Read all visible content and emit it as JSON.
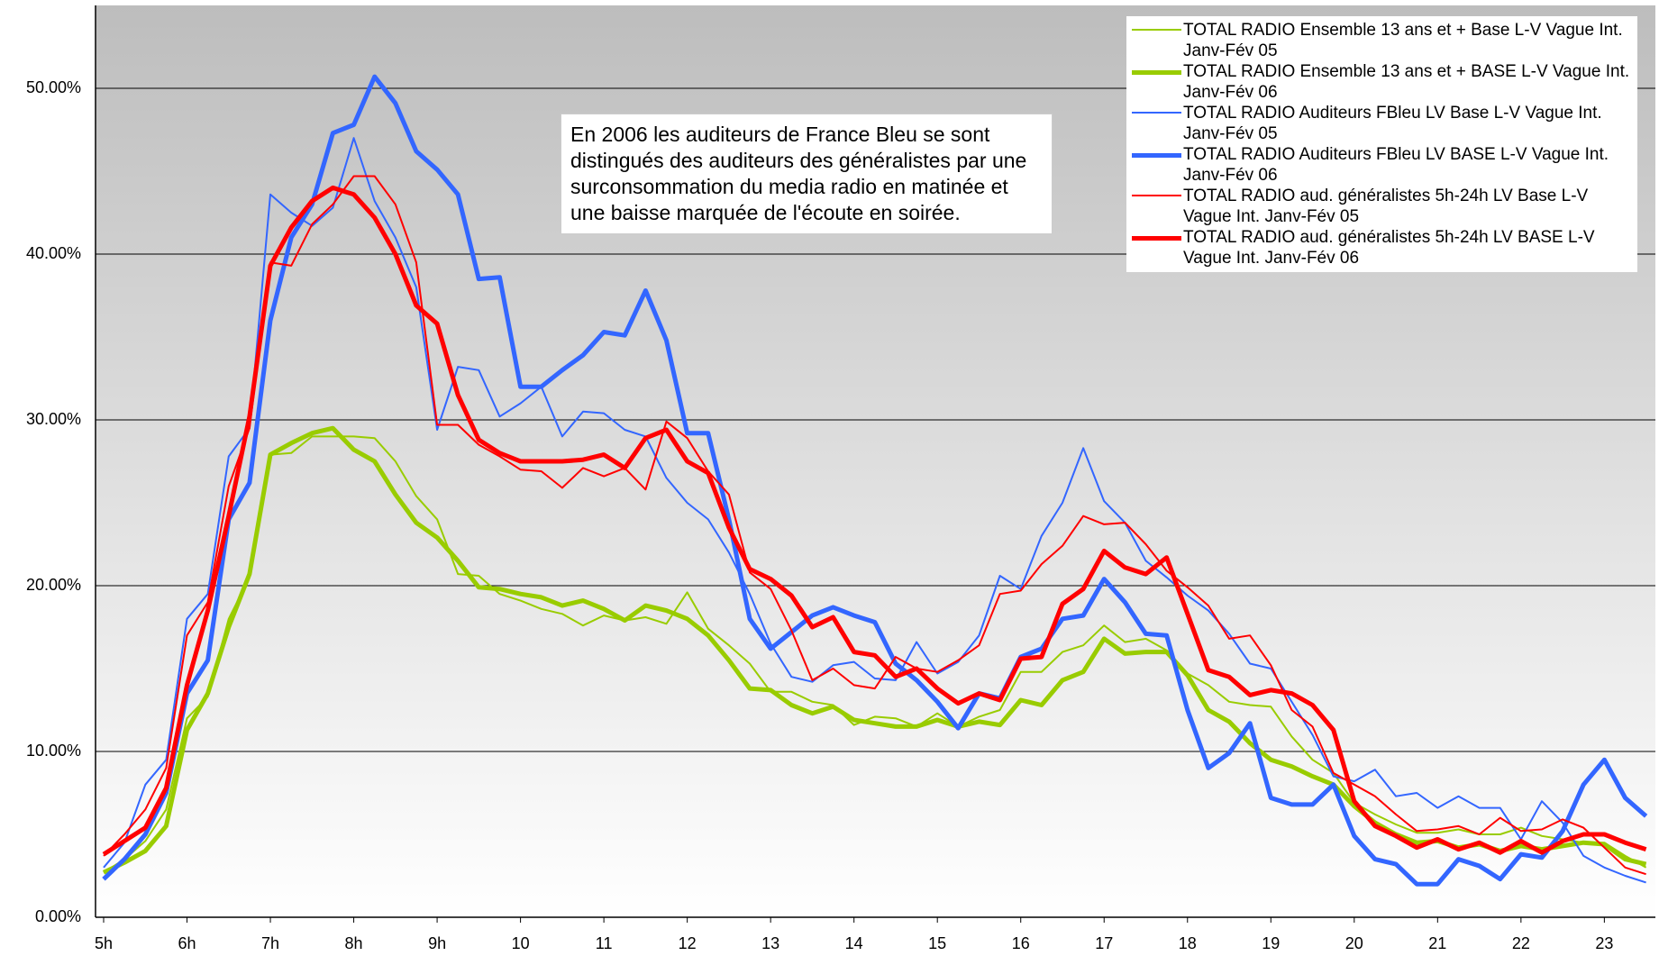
{
  "chart_data": {
    "type": "line",
    "categories": [
      "5h",
      null,
      null,
      null,
      "6h",
      null,
      null,
      null,
      "7h",
      null,
      null,
      null,
      "8h",
      null,
      null,
      null,
      "9h",
      null,
      null,
      null,
      "10",
      null,
      null,
      null,
      "11",
      null,
      null,
      null,
      "12",
      null,
      null,
      null,
      "13",
      null,
      null,
      null,
      "14",
      null,
      null,
      null,
      "15",
      null,
      null,
      null,
      "16",
      null,
      null,
      null,
      "17",
      null,
      null,
      null,
      "18",
      null,
      null,
      null,
      "19",
      null,
      null,
      null,
      "20",
      null,
      null,
      null,
      "21",
      null,
      null,
      null,
      "22",
      null,
      null,
      null,
      "23",
      null,
      null
    ],
    "ylim": [
      0,
      55
    ],
    "yticks": [
      {
        "value": 0,
        "label": "0.00%"
      },
      {
        "value": 10,
        "label": "10.00%"
      },
      {
        "value": 20,
        "label": "20.00%"
      },
      {
        "value": 30,
        "label": "30.00%"
      },
      {
        "value": 40,
        "label": "40.00%"
      },
      {
        "value": 50,
        "label": "50.00%"
      }
    ],
    "grid": true,
    "legend": "upper right",
    "annotation": "En 2006 les auditeurs de France Bleu se sont distingués des auditeurs des généralistes par une surconsommation du media radio en matinée et une baisse marquée de l'écoute en soirée.",
    "series": [
      {
        "name": "TOTAL RADIO Ensemble 13 ans et + Base L-V Vague Int. Janv-Fév 05",
        "color": "#99cc00",
        "line_width": 2,
        "values": [
          2.7,
          3.5,
          4.6,
          6.5,
          12,
          13.3,
          18,
          20.5,
          27.9,
          28,
          29,
          29,
          29,
          28.9,
          27.5,
          25.4,
          24,
          20.7,
          20.6,
          19.5,
          19.1,
          18.6,
          18.3,
          17.6,
          18.2,
          17.9,
          18.1,
          17.7,
          19.6,
          17.4,
          16.4,
          15.3,
          13.6,
          13.6,
          13,
          12.8,
          11.6,
          12.1,
          12,
          11.5,
          12.3,
          11.5,
          12.1,
          12.5,
          14.8,
          14.8,
          16,
          16.4,
          17.6,
          16.6,
          16.8,
          16.1,
          14.7,
          14,
          13,
          12.8,
          12.7,
          10.9,
          9.5,
          8.7,
          6.9,
          6.2,
          5.6,
          5.1,
          5.1,
          5.3,
          5,
          5,
          5.4,
          4.9,
          4.7,
          4.5,
          4.5,
          3.7,
          3
        ]
      },
      {
        "name": "TOTAL RADIO Ensemble 13 ans et + BASE L-V Vague Int. Janv-Fév 06",
        "color": "#99cc00",
        "line_width": 5,
        "values": [
          2.7,
          3.3,
          4,
          5.5,
          11.3,
          13.5,
          17.5,
          20.7,
          27.9,
          28.6,
          29.2,
          29.5,
          28.2,
          27.5,
          25.5,
          23.8,
          22.9,
          21.5,
          19.9,
          19.8,
          19.5,
          19.3,
          18.8,
          19.1,
          18.6,
          17.9,
          18.8,
          18.5,
          18,
          17,
          15.5,
          13.8,
          13.7,
          12.8,
          12.3,
          12.7,
          11.9,
          11.7,
          11.5,
          11.5,
          11.9,
          11.5,
          11.8,
          11.6,
          13.1,
          12.8,
          14.3,
          14.8,
          16.8,
          15.9,
          16,
          16,
          14.6,
          12.5,
          11.8,
          10.5,
          9.5,
          9.1,
          8.5,
          8,
          6.7,
          5.7,
          5,
          4.5,
          4.6,
          4.2,
          4.4,
          4,
          4.3,
          4.1,
          4.3,
          4.5,
          4.4,
          3.5,
          3.2
        ]
      },
      {
        "name": "TOTAL RADIO Auditeurs FBleu LV Base L-V Vague Int. Janv-Fév 05",
        "color": "#3366ff",
        "line_width": 2,
        "values": [
          3,
          4.5,
          8,
          9.5,
          18,
          19.5,
          27.8,
          29.5,
          43.6,
          42.5,
          41.7,
          42.8,
          47,
          43.2,
          41,
          38,
          29.4,
          33.2,
          33,
          30.2,
          31,
          32,
          29,
          30.5,
          30.4,
          29.4,
          29,
          26.5,
          25,
          24,
          22,
          19.5,
          16.5,
          14.5,
          14.2,
          15.2,
          15.4,
          14.4,
          14.3,
          16.6,
          14.7,
          15.4,
          17,
          20.6,
          19.8,
          23,
          25,
          28.3,
          25.1,
          23.8,
          21.5,
          20.5,
          19.4,
          18.5,
          17.1,
          15.3,
          15,
          13,
          11,
          8.5,
          8.2,
          8.9,
          7.3,
          7.5,
          6.6,
          7.3,
          6.6,
          6.6,
          4.7,
          7,
          5.7,
          3.7,
          3,
          2.5,
          2.1
        ]
      },
      {
        "name": "TOTAL RADIO Auditeurs FBleu LV BASE L-V Vague Int. Janv-Fév 06",
        "color": "#3366ff",
        "line_width": 5,
        "values": [
          2.3,
          3.5,
          5,
          7.5,
          13.5,
          15.5,
          24,
          26.2,
          36,
          41,
          43,
          47.3,
          47.8,
          50.7,
          49.1,
          46.2,
          45.1,
          43.6,
          38.5,
          38.6,
          32,
          32,
          33,
          33.9,
          35.3,
          35.1,
          37.8,
          34.8,
          29.2,
          29.2,
          24,
          18,
          16.2,
          17.2,
          18.2,
          18.7,
          18.2,
          17.8,
          15.3,
          14.3,
          13,
          11.4,
          13.5,
          13.2,
          15.7,
          16.2,
          18,
          18.2,
          20.4,
          19,
          17.1,
          17,
          12.5,
          9,
          9.9,
          11.7,
          7.2,
          6.8,
          6.8,
          8,
          4.9,
          3.5,
          3.2,
          2,
          2,
          3.5,
          3.1,
          2.3,
          3.8,
          3.6,
          5.2,
          8,
          9.5,
          7.2,
          6.1
        ]
      },
      {
        "name": "TOTAL RADIO aud. généralistes 5h-24h LV Base L-V Vague Int. Janv-Fév 05",
        "color": "#ff0000",
        "line_width": 2,
        "values": [
          3.7,
          5,
          6.5,
          9,
          17,
          19,
          26,
          29.5,
          39.5,
          39.3,
          41.8,
          43,
          44.7,
          44.7,
          43,
          39.5,
          29.7,
          29.7,
          28.5,
          27.8,
          27,
          26.9,
          25.9,
          27.1,
          26.6,
          27.1,
          25.8,
          29.9,
          28.9,
          26.9,
          25.5,
          20.8,
          19.8,
          17.3,
          14.3,
          15,
          14,
          13.8,
          15.7,
          15,
          14.8,
          15.5,
          16.4,
          19.5,
          19.7,
          21.3,
          22.4,
          24.2,
          23.7,
          23.8,
          22.5,
          20.9,
          19.9,
          18.8,
          16.8,
          17,
          15.2,
          12.5,
          11.5,
          8.7,
          8,
          7.3,
          6.2,
          5.2,
          5.3,
          5.5,
          5,
          6,
          5.2,
          5.3,
          5.9,
          5.4,
          4.2,
          3,
          2.6
        ]
      },
      {
        "name": "TOTAL RADIO aud. généralistes 5h-24h LV BASE L-V Vague Int. Janv-Fév 06",
        "color": "#ff0000",
        "line_width": 5,
        "values": [
          3.8,
          4.6,
          5.4,
          7.8,
          14,
          18.5,
          24.2,
          30.2,
          39.3,
          41.6,
          43.2,
          44,
          43.6,
          42.2,
          40,
          36.9,
          35.8,
          31.5,
          28.8,
          28,
          27.5,
          27.5,
          27.5,
          27.6,
          27.9,
          27.1,
          28.9,
          29.4,
          27.5,
          26.8,
          23.5,
          21,
          20.4,
          19.4,
          17.5,
          18.1,
          16,
          15.8,
          14.5,
          15,
          13.8,
          12.9,
          13.5,
          13.1,
          15.6,
          15.7,
          18.9,
          19.8,
          22.1,
          21.1,
          20.7,
          21.7,
          18.3,
          14.9,
          14.5,
          13.4,
          13.7,
          13.5,
          12.8,
          11.3,
          7,
          5.5,
          4.9,
          4.2,
          4.7,
          4.1,
          4.5,
          3.9,
          4.6,
          3.9,
          4.6,
          5,
          5,
          4.5,
          4.1
        ]
      }
    ]
  }
}
